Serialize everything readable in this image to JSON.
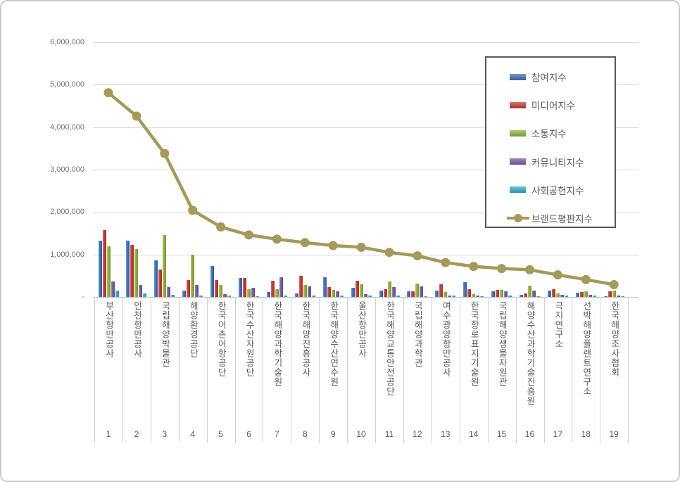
{
  "chart_data": {
    "type": "bar",
    "note_type": "clustered bar chart with line overlay",
    "title": "",
    "xlabel": "",
    "ylabel": "",
    "ylim": [
      0,
      6000000
    ],
    "ytick_interval": 1000000,
    "grid": true,
    "legend_position": "upper-right boxed",
    "y_axis": {
      "ticks": [
        {
          "label": "6,000,000",
          "value": 6000000
        },
        {
          "label": "5,000,000",
          "value": 5000000
        },
        {
          "label": "4,000,000",
          "value": 4000000
        },
        {
          "label": "3,000,000",
          "value": 3000000
        },
        {
          "label": "2,000,000",
          "value": 2000000
        },
        {
          "label": "1,000,000",
          "value": 1000000
        },
        {
          "label": "-",
          "value": 0
        }
      ]
    },
    "categories": [
      "부산항만공사",
      "인천항만공사",
      "국립해양박물관",
      "해양환경공단",
      "한국어촌어항공단",
      "한국수산자원공단",
      "한국해양과학기술원",
      "한국해양진흥공사",
      "한국해양수산연수원",
      "울산항만공사",
      "한국해양교통안전공단",
      "국립해양과학관",
      "여수광양항만공사",
      "한국항로표지기술원",
      "국립해양생물자원관",
      "해양수산과학기술진흥원",
      "극지연구소",
      "선박해양플랜트연구소",
      "한국해양조사협회"
    ],
    "ranks": [
      "1",
      "2",
      "3",
      "4",
      "5",
      "6",
      "7",
      "8",
      "9",
      "10",
      "11",
      "12",
      "13",
      "14",
      "15",
      "16",
      "17",
      "18",
      "19"
    ],
    "series": [
      {
        "name": "참여지수",
        "color": "#3e6fb5",
        "values": [
          1330000,
          1320000,
          860000,
          150000,
          730000,
          450000,
          110000,
          90000,
          470000,
          215000,
          155000,
          140000,
          150000,
          350000,
          130000,
          55000,
          145000,
          95000,
          15000
        ]
      },
      {
        "name": "미디어지수",
        "color": "#c13a34",
        "values": [
          1570000,
          1230000,
          650000,
          390000,
          400000,
          440000,
          380000,
          490000,
          230000,
          380000,
          175000,
          140000,
          300000,
          180000,
          165000,
          90000,
          180000,
          115000,
          130000
        ]
      },
      {
        "name": "소통지수",
        "color": "#8fb13c",
        "values": [
          1190000,
          1130000,
          1460000,
          1000000,
          280000,
          190000,
          190000,
          280000,
          170000,
          300000,
          360000,
          315000,
          110000,
          70000,
          165000,
          260000,
          75000,
          140000,
          145000
        ]
      },
      {
        "name": "커뮤니티지수",
        "color": "#7a58a5",
        "values": [
          370000,
          290000,
          230000,
          290000,
          70000,
          210000,
          460000,
          250000,
          130000,
          60000,
          230000,
          250000,
          40000,
          40000,
          130000,
          150000,
          45000,
          50000,
          40000
        ]
      },
      {
        "name": "사회공헌지수",
        "color": "#2fa9c9",
        "values": [
          150000,
          90000,
          50000,
          30000,
          30000,
          20000,
          40000,
          40000,
          30000,
          30000,
          30000,
          20000,
          30000,
          10000,
          30000,
          15000,
          30000,
          35000,
          10000
        ]
      }
    ],
    "line_series": {
      "name": "브랜드평판지수",
      "color": "#a49a5b",
      "values": [
        4810000,
        4260000,
        3380000,
        2040000,
        1650000,
        1460000,
        1360000,
        1280000,
        1210000,
        1170000,
        1050000,
        970000,
        810000,
        720000,
        670000,
        640000,
        520000,
        410000,
        290000
      ]
    }
  }
}
